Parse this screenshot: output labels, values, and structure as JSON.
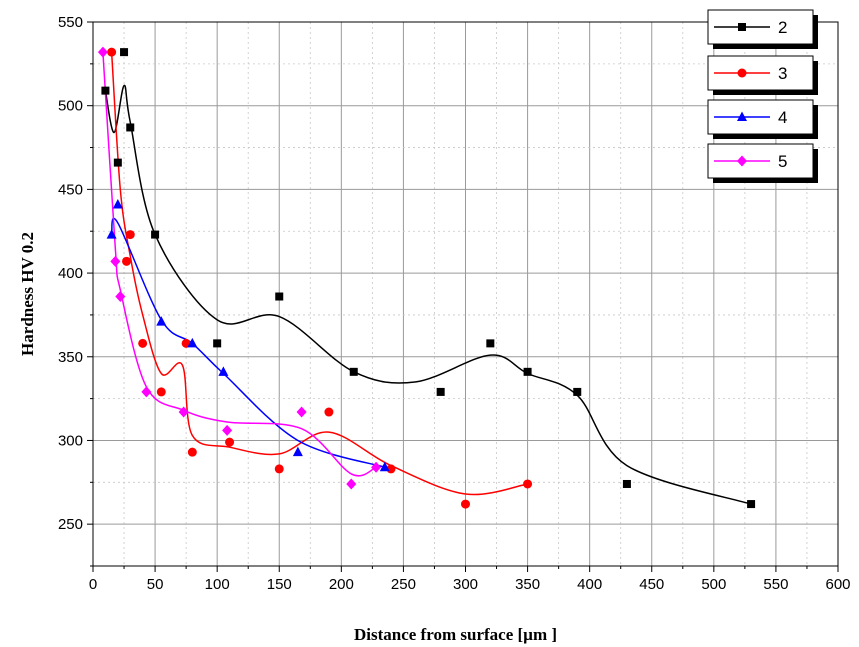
{
  "chart_data": {
    "type": "scatter",
    "title": "",
    "xlabel": "Distance from surface [µm ]",
    "ylabel": "Hardness HV 0.2",
    "xlim": [
      0,
      600
    ],
    "ylim": [
      225,
      550
    ],
    "xticks": [
      "0",
      "50",
      "100",
      "150",
      "200",
      "250",
      "300",
      "350",
      "400",
      "450",
      "500",
      "550",
      "600"
    ],
    "yticks": [
      "250",
      "300",
      "350",
      "400",
      "450",
      "500",
      "550"
    ],
    "grid": true,
    "legend": "top-right",
    "series": [
      {
        "name": "2",
        "color": "#000000",
        "marker": "square",
        "points": [
          [
            10,
            509
          ],
          [
            20,
            466
          ],
          [
            25,
            532
          ],
          [
            30,
            487
          ],
          [
            50,
            423
          ],
          [
            100,
            358
          ],
          [
            150,
            386
          ],
          [
            210,
            341
          ],
          [
            280,
            329
          ],
          [
            320,
            358
          ],
          [
            350,
            341
          ],
          [
            390,
            329
          ],
          [
            430,
            274
          ],
          [
            530,
            262
          ]
        ],
        "curve": [
          [
            10,
            509
          ],
          [
            17,
            484
          ],
          [
            25,
            512
          ],
          [
            30,
            490
          ],
          [
            50,
            423
          ],
          [
            100,
            372
          ],
          [
            150,
            374
          ],
          [
            210,
            341
          ],
          [
            260,
            335
          ],
          [
            320,
            351
          ],
          [
            350,
            340
          ],
          [
            390,
            327
          ],
          [
            430,
            285
          ],
          [
            530,
            262
          ]
        ]
      },
      {
        "name": "3",
        "color": "#ff0000",
        "marker": "circle",
        "points": [
          [
            15,
            532
          ],
          [
            27,
            407
          ],
          [
            30,
            423
          ],
          [
            40,
            358
          ],
          [
            55,
            329
          ],
          [
            75,
            358
          ],
          [
            80,
            293
          ],
          [
            110,
            299
          ],
          [
            150,
            283
          ],
          [
            190,
            317
          ],
          [
            240,
            283
          ],
          [
            300,
            262
          ],
          [
            350,
            274
          ]
        ],
        "curve": [
          [
            15,
            532
          ],
          [
            22,
            450
          ],
          [
            30,
            410
          ],
          [
            40,
            375
          ],
          [
            55,
            340
          ],
          [
            72,
            345
          ],
          [
            80,
            303
          ],
          [
            110,
            296
          ],
          [
            150,
            292
          ],
          [
            190,
            305
          ],
          [
            240,
            285
          ],
          [
            300,
            268
          ],
          [
            350,
            274
          ]
        ]
      },
      {
        "name": "4",
        "color": "#0000ff",
        "marker": "triangle",
        "points": [
          [
            15,
            423
          ],
          [
            20,
            441
          ],
          [
            55,
            371
          ],
          [
            80,
            358
          ],
          [
            105,
            341
          ],
          [
            165,
            293
          ],
          [
            235,
            284
          ]
        ],
        "curve": [
          [
            15,
            423
          ],
          [
            20,
            430
          ],
          [
            55,
            372
          ],
          [
            80,
            358
          ],
          [
            105,
            340
          ],
          [
            165,
            300
          ],
          [
            235,
            284
          ]
        ]
      },
      {
        "name": "5",
        "color": "#ff00ff",
        "marker": "diamond",
        "points": [
          [
            8,
            532
          ],
          [
            18,
            407
          ],
          [
            22,
            386
          ],
          [
            43,
            329
          ],
          [
            73,
            317
          ],
          [
            108,
            306
          ],
          [
            168,
            317
          ],
          [
            208,
            274
          ],
          [
            228,
            284
          ]
        ],
        "curve": [
          [
            8,
            532
          ],
          [
            18,
            415
          ],
          [
            22,
            390
          ],
          [
            43,
            332
          ],
          [
            73,
            318
          ],
          [
            108,
            311
          ],
          [
            168,
            307
          ],
          [
            208,
            280
          ],
          [
            228,
            284
          ]
        ]
      }
    ]
  }
}
